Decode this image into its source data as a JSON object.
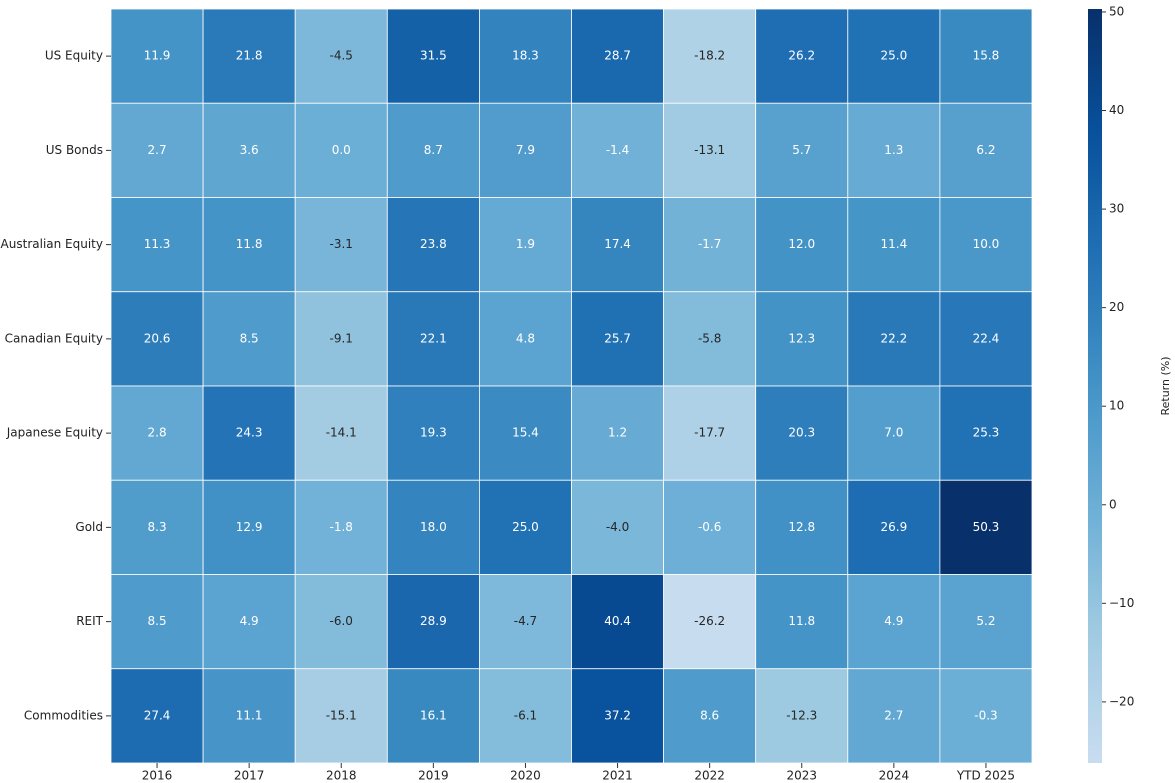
{
  "chart_data": {
    "type": "heatmap",
    "x_categories": [
      "2016",
      "2017",
      "2018",
      "2019",
      "2020",
      "2021",
      "2022",
      "2023",
      "2024",
      "YTD 2025"
    ],
    "y_categories": [
      "US Equity",
      "US Bonds",
      "Australian Equity",
      "Canadian Equity",
      "Japanese Equity",
      "Gold",
      "REIT",
      "Commodities"
    ],
    "values": [
      [
        11.9,
        21.8,
        -4.5,
        31.5,
        18.3,
        28.7,
        -18.2,
        26.2,
        25.0,
        15.8
      ],
      [
        2.7,
        3.6,
        0.0,
        8.7,
        7.9,
        -1.4,
        -13.1,
        5.7,
        1.3,
        6.2
      ],
      [
        11.3,
        11.8,
        -3.1,
        23.8,
        1.9,
        17.4,
        -1.7,
        12.0,
        11.4,
        10.0
      ],
      [
        20.6,
        8.5,
        -9.1,
        22.1,
        4.8,
        25.7,
        -5.8,
        12.3,
        22.2,
        22.4
      ],
      [
        2.8,
        24.3,
        -14.1,
        19.3,
        15.4,
        1.2,
        -17.7,
        20.3,
        7.0,
        25.3
      ],
      [
        8.3,
        12.9,
        -1.8,
        18.0,
        25.0,
        -4.0,
        -0.6,
        12.8,
        26.9,
        50.3
      ],
      [
        8.5,
        4.9,
        -6.0,
        28.9,
        -4.7,
        40.4,
        -26.2,
        11.8,
        4.9,
        5.2
      ],
      [
        27.4,
        11.1,
        -15.1,
        16.1,
        -6.1,
        37.2,
        8.6,
        -12.3,
        2.7,
        -0.3
      ]
    ],
    "value_labels": [
      [
        "11.9",
        "21.8",
        "-4.5",
        "31.5",
        "18.3",
        "28.7",
        "-18.2",
        "26.2",
        "25.0",
        "15.8"
      ],
      [
        "2.7",
        "3.6",
        "0.0",
        "8.7",
        "7.9",
        "-1.4",
        "-13.1",
        "5.7",
        "1.3",
        "6.2"
      ],
      [
        "11.3",
        "11.8",
        "-3.1",
        "23.8",
        "1.9",
        "17.4",
        "-1.7",
        "12.0",
        "11.4",
        "10.0"
      ],
      [
        "20.6",
        "8.5",
        "-9.1",
        "22.1",
        "4.8",
        "25.7",
        "-5.8",
        "12.3",
        "22.2",
        "22.4"
      ],
      [
        "2.8",
        "24.3",
        "-14.1",
        "19.3",
        "15.4",
        "1.2",
        "-17.7",
        "20.3",
        "7.0",
        "25.3"
      ],
      [
        "8.3",
        "12.9",
        "-1.8",
        "18.0",
        "25.0",
        "-4.0",
        "-0.6",
        "12.8",
        "26.9",
        "50.3"
      ],
      [
        "8.5",
        "4.9",
        "-6.0",
        "28.9",
        "-4.7",
        "40.4",
        "-26.2",
        "11.8",
        "4.9",
        "5.2"
      ],
      [
        "27.4",
        "11.1",
        "-15.1",
        "16.1",
        "-6.1",
        "37.2",
        "8.6",
        "-12.3",
        "2.7",
        "-0.3"
      ]
    ],
    "colormap": [
      "#f7fbff",
      "#deebf7",
      "#c6dbef",
      "#9ecae1",
      "#6baed6",
      "#4292c6",
      "#2171b5",
      "#08519c",
      "#08306b"
    ],
    "center": 0,
    "clim": [
      -26.2,
      50.3
    ],
    "colorbar_label": "Return (%)",
    "colorbar_ticks": [
      {
        "value": -20,
        "label": "−20"
      },
      {
        "value": -10,
        "label": "−10"
      },
      0,
      10,
      20,
      30,
      40,
      50
    ]
  }
}
